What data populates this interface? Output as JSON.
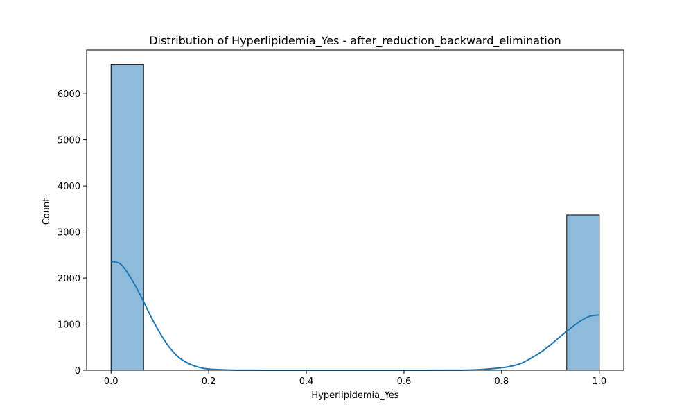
{
  "chart_data": {
    "type": "bar",
    "title": "Distribution of Hyperlipidemia_Yes - after_reduction_backward_elimination",
    "xlabel": "Hyperlipidemia_Yes",
    "ylabel": "Count",
    "xlim": [
      -0.05,
      1.05
    ],
    "ylim": [
      0,
      6950
    ],
    "x_ticks": [
      0.0,
      0.2,
      0.4,
      0.6,
      0.8,
      1.0
    ],
    "x_tick_labels": [
      "0.0",
      "0.2",
      "0.4",
      "0.6",
      "0.8",
      "1.0"
    ],
    "y_ticks": [
      0,
      1000,
      2000,
      3000,
      4000,
      5000,
      6000
    ],
    "y_tick_labels": [
      "0",
      "1000",
      "2000",
      "3000",
      "4000",
      "5000",
      "6000"
    ],
    "bins": [
      {
        "x0": 0.0,
        "x1": 0.0667,
        "count": 6630
      },
      {
        "x0": 0.9333,
        "x1": 1.0,
        "count": 3370
      }
    ],
    "kde": {
      "x": [
        0.0,
        0.02,
        0.04,
        0.06,
        0.08,
        0.1,
        0.12,
        0.14,
        0.16,
        0.18,
        0.2,
        0.25,
        0.3,
        0.4,
        0.5,
        0.6,
        0.7,
        0.75,
        0.8,
        0.82,
        0.84,
        0.86,
        0.88,
        0.9,
        0.92,
        0.94,
        0.96,
        0.98,
        1.0
      ],
      "y": [
        2360,
        2300,
        2010,
        1630,
        1200,
        810,
        490,
        270,
        140,
        65,
        27,
        4,
        1,
        0,
        0,
        0,
        2,
        12,
        55,
        90,
        150,
        260,
        390,
        550,
        730,
        900,
        1060,
        1170,
        1200
      ]
    },
    "colors": {
      "bar_fill": "#8ebbdb",
      "bar_edge": "#000000",
      "kde_line": "#1f77b4"
    },
    "grid": false,
    "legend": "none"
  }
}
